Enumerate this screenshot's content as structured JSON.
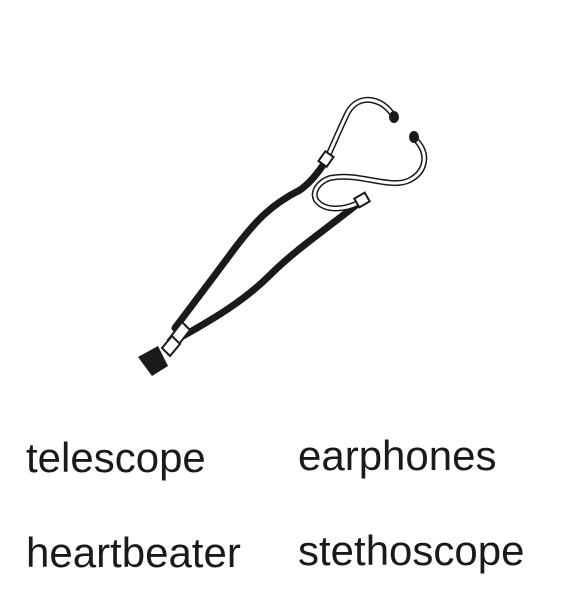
{
  "illustration": {
    "icon": "stethoscope-icon",
    "stroke_color": "#1a1a1a"
  },
  "options": {
    "telescope": "telescope",
    "earphones": "earphones",
    "heartbeater": "heartbeater",
    "stethoscope": "stethoscope"
  }
}
